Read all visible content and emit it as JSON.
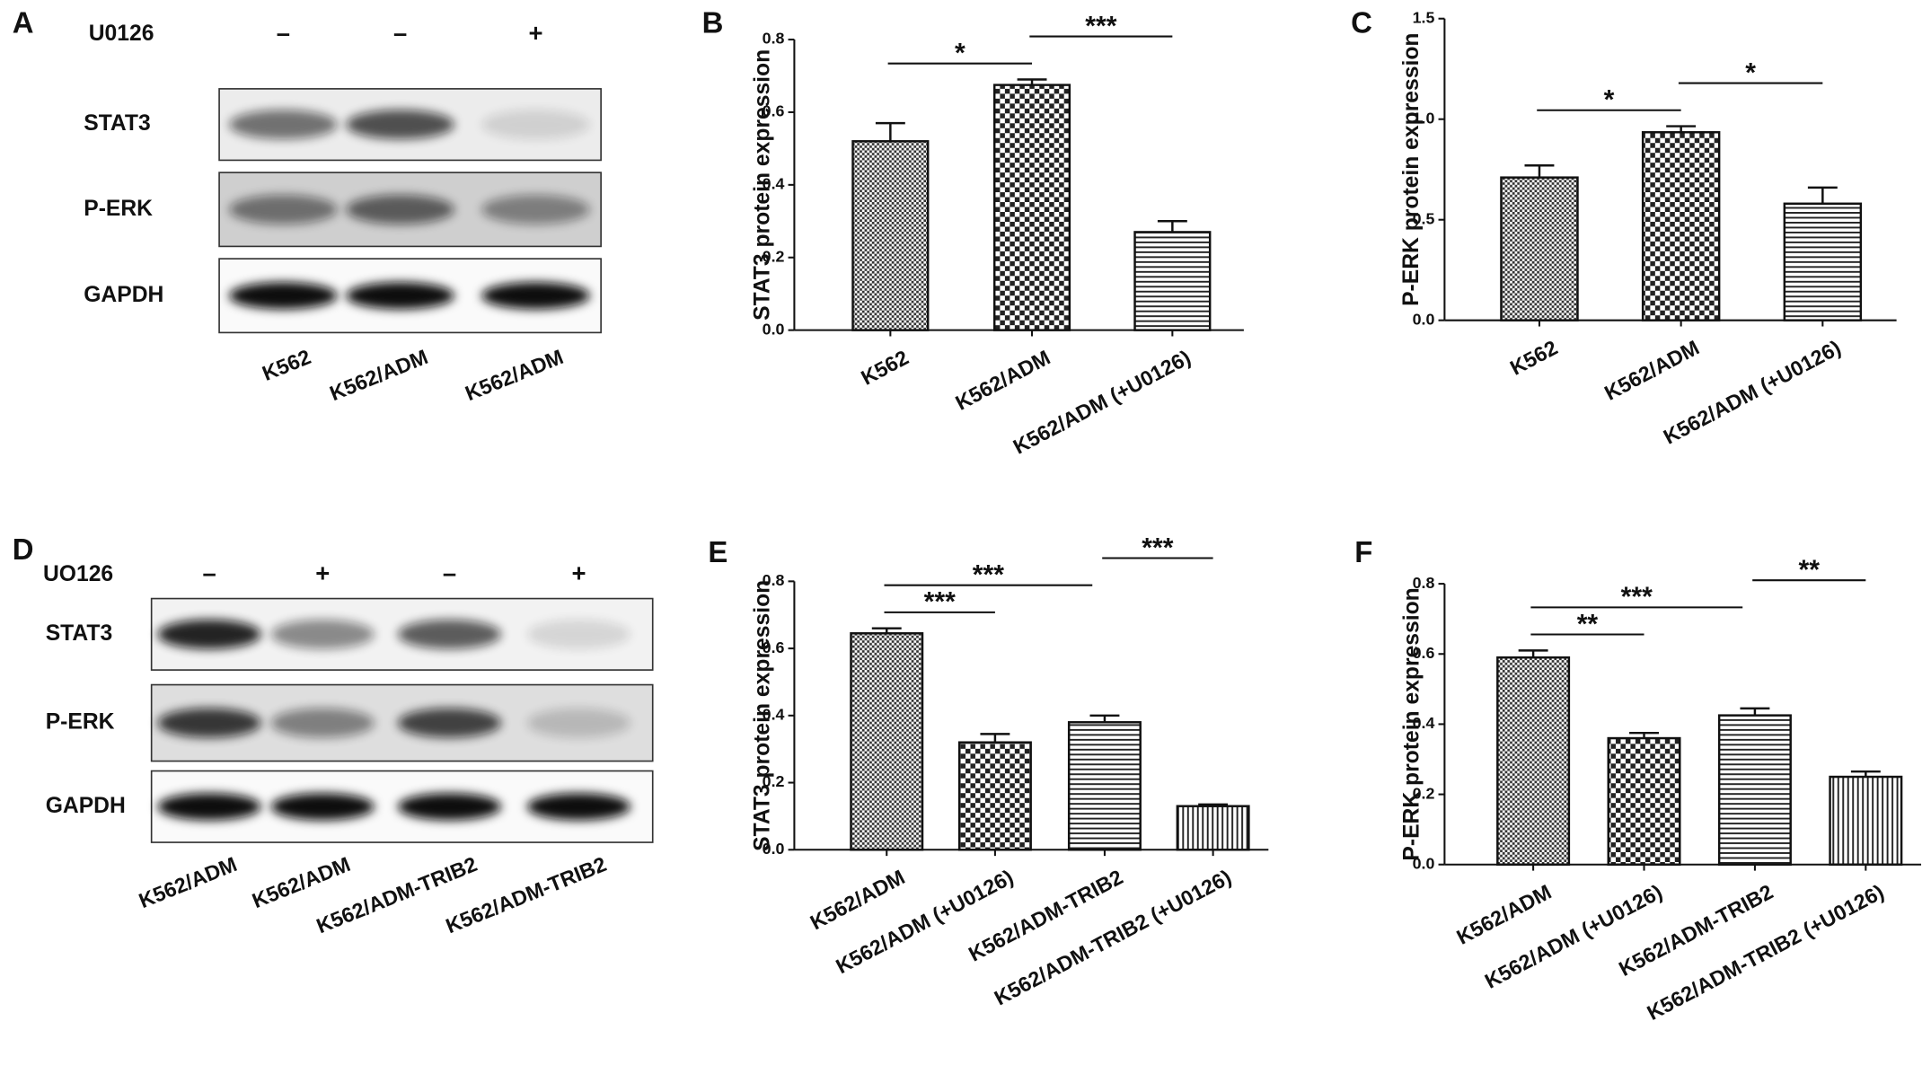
{
  "chart_data": [
    {
      "type": "bar",
      "panel": "B",
      "y_label": "STAT3 protein expression",
      "categories": [
        "K562",
        "K562/ADM",
        "K562/ADM (+U0126)"
      ],
      "values": [
        0.52,
        0.675,
        0.27
      ],
      "errors": [
        0.05,
        0.015,
        0.03
      ],
      "patterns": [
        "fine-check",
        "check",
        "hlines"
      ],
      "ylim": [
        0,
        0.8
      ],
      "yticks": [
        {
          "value": 0,
          "label": "0.0"
        },
        0.2,
        0.4,
        0.6,
        0.8
      ],
      "significance": [
        {
          "from": 0,
          "to": 1,
          "label": "*"
        },
        {
          "from": 1,
          "to": 2,
          "label": "***"
        }
      ]
    },
    {
      "type": "bar",
      "panel": "C",
      "y_label": "P-ERK protein expression",
      "categories": [
        "K562",
        "K562/ADM",
        "K562/ADM (+U0126)"
      ],
      "values": [
        0.71,
        0.935,
        0.58
      ],
      "errors": [
        0.06,
        0.03,
        0.08
      ],
      "patterns": [
        "fine-check",
        "check",
        "hlines"
      ],
      "ylim": [
        0,
        1.5
      ],
      "yticks": [
        {
          "value": 0,
          "label": "0.0"
        },
        0.5,
        {
          "value": 1,
          "label": "1.0"
        },
        1.5
      ],
      "significance": [
        {
          "from": 0,
          "to": 1,
          "label": "*"
        },
        {
          "from": 1,
          "to": 2,
          "label": "*"
        }
      ]
    },
    {
      "type": "bar",
      "panel": "E",
      "y_label": "STAT3 protein expression",
      "categories": [
        "K562/ADM",
        "K562/ADM (+U0126)",
        "K562/ADM-TRIB2",
        "K562/ADM-TRIB2 (+U0126)"
      ],
      "values": [
        0.645,
        0.32,
        0.38,
        0.13
      ],
      "errors": [
        0.015,
        0.025,
        0.02,
        0.005
      ],
      "patterns": [
        "fine-check",
        "check",
        "hlines",
        "vlines"
      ],
      "ylim": [
        0,
        0.8
      ],
      "yticks": [
        {
          "value": 0,
          "label": "0.0"
        },
        0.2,
        0.4,
        0.6,
        0.8
      ],
      "significance": [
        {
          "from": 0,
          "to": 1,
          "label": "***"
        },
        {
          "from": 0,
          "to": 2,
          "label": "***"
        },
        {
          "from": 2,
          "to": 3,
          "label": "***"
        }
      ]
    },
    {
      "type": "bar",
      "panel": "F",
      "y_label": "P-ERK protein expression",
      "categories": [
        "K562/ADM",
        "K562/ADM (+U0126)",
        "K562/ADM-TRIB2",
        "K562/ADM-TRIB2 (+U0126)"
      ],
      "values": [
        0.59,
        0.36,
        0.425,
        0.25
      ],
      "errors": [
        0.02,
        0.015,
        0.02,
        0.015
      ],
      "patterns": [
        "fine-check",
        "check",
        "hlines",
        "vlines"
      ],
      "ylim": [
        0,
        0.8
      ],
      "yticks": [
        {
          "value": 0,
          "label": "0.0"
        },
        0.2,
        0.4,
        0.6,
        0.8
      ],
      "significance": [
        {
          "from": 0,
          "to": 1,
          "label": "**"
        },
        {
          "from": 0,
          "to": 2,
          "label": "***"
        },
        {
          "from": 2,
          "to": 3,
          "label": "**"
        }
      ]
    }
  ],
  "blots": [
    {
      "panel": "A",
      "treatment": "U0126",
      "signs": [
        "–",
        "–",
        "+"
      ],
      "rows": [
        "STAT3",
        "P-ERK",
        "GAPDH"
      ],
      "lanes": [
        "K562",
        "K562/ADM",
        "K562/ADM"
      ]
    },
    {
      "panel": "D",
      "treatment": "UO126",
      "signs": [
        "–",
        "+",
        "–",
        "+"
      ],
      "rows": [
        "STAT3",
        "P-ERK",
        "GAPDH"
      ],
      "lanes": [
        "K562/ADM",
        "K562/ADM",
        "K562/ADM-TRIB2",
        "K562/ADM-TRIB2"
      ]
    }
  ]
}
